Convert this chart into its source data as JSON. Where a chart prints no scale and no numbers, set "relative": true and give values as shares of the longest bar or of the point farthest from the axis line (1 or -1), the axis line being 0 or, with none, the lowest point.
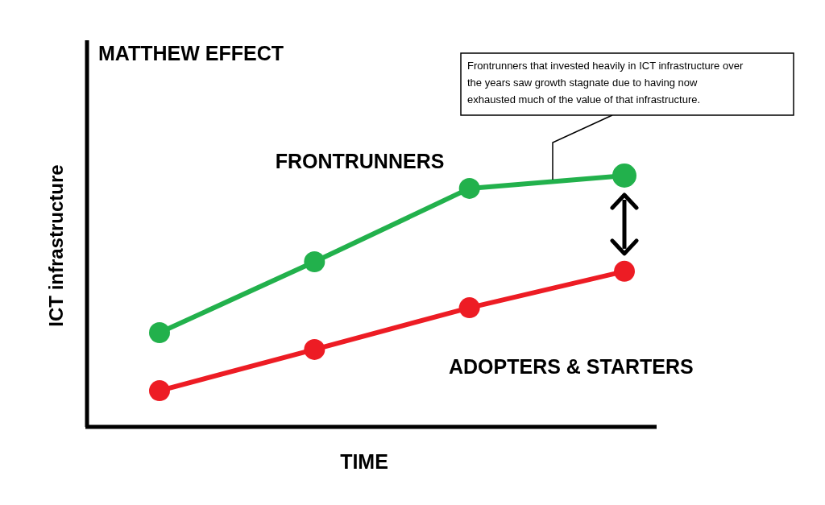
{
  "chart_data": {
    "type": "line",
    "relative": true,
    "title": "MATTHEW EFFECT",
    "xlabel": "TIME",
    "ylabel": "ICT infrastructure",
    "categories": [
      null,
      null,
      null,
      null
    ],
    "marker": "circle",
    "line_style": "solid",
    "series": [
      {
        "name": "FRONTRUNNERS",
        "color": "#22b14c",
        "values": [
          0.375,
          0.657,
          0.949,
          1
        ]
      },
      {
        "name": "ADOPTERS & STARTERS",
        "color": "#ed1c24",
        "values": [
          0.144,
          0.308,
          0.474,
          0.619
        ]
      }
    ],
    "annotations": [
      "Frontrunners that invested heavily in ICT infrastructure over the years saw growth stagnate due to having now exhausted much of the value of that infrastructure."
    ]
  }
}
